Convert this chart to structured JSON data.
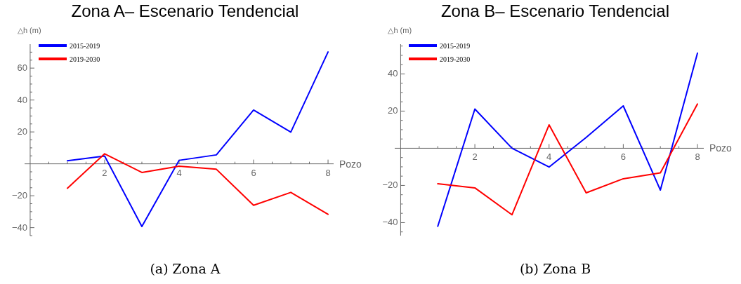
{
  "chart_data": [
    {
      "type": "line",
      "title": "Zona A– Escenario Tendencial",
      "xlabel": "Pozo",
      "ylabel": "△h (m)",
      "annotations": [
        "(a) Zona A"
      ],
      "legend": "top left",
      "grid": false,
      "x": [
        1,
        2,
        3,
        4,
        5,
        6,
        7,
        8
      ],
      "xlim": [
        -0.15,
        8.15
      ],
      "ylim": [
        -45,
        75
      ],
      "xticks": [
        {
          "value": 0.5,
          "label": null
        },
        {
          "value": 1,
          "label": null
        },
        {
          "value": 1.5,
          "label": null
        },
        2,
        {
          "value": 2.5,
          "label": null
        },
        {
          "value": 3,
          "label": null
        },
        {
          "value": 3.5,
          "label": null
        },
        4,
        {
          "value": 4.5,
          "label": null
        },
        {
          "value": 5,
          "label": null
        },
        {
          "value": 5.5,
          "label": null
        },
        6,
        {
          "value": 6.5,
          "label": null
        },
        {
          "value": 7,
          "label": null
        },
        {
          "value": 7.5,
          "label": null
        },
        8
      ],
      "yticks": [
        {
          "value": -45,
          "label": null
        },
        -40,
        {
          "value": -35,
          "label": null
        },
        {
          "value": -30,
          "label": null
        },
        {
          "value": -25,
          "label": null
        },
        -20,
        {
          "value": -15,
          "label": null
        },
        {
          "value": -10,
          "label": null
        },
        {
          "value": -5,
          "label": null
        },
        {
          "value": 5,
          "label": null
        },
        {
          "value": 10,
          "label": null
        },
        {
          "value": 15,
          "label": null
        },
        20,
        {
          "value": 25,
          "label": null
        },
        {
          "value": 30,
          "label": null
        },
        {
          "value": 35,
          "label": null
        },
        40,
        {
          "value": 45,
          "label": null
        },
        {
          "value": 50,
          "label": null
        },
        {
          "value": 55,
          "label": null
        },
        60,
        {
          "value": 65,
          "label": null
        },
        {
          "value": 70,
          "label": null
        }
      ],
      "series": [
        {
          "name": "2015-2019",
          "color": "#0000ff",
          "values": [
            1.9,
            4.9,
            -39.3,
            2.2,
            5.6,
            33.7,
            19.9,
            70.1
          ]
        },
        {
          "name": "2019-2030",
          "color": "#ff0000",
          "values": [
            -15.3,
            6.3,
            -5.4,
            -1.5,
            -3.4,
            -26,
            -17.9,
            -31.6
          ]
        }
      ]
    },
    {
      "type": "line",
      "title": "Zona B– Escenario Tendencial",
      "xlabel": "Pozo",
      "ylabel": "△h (m)",
      "annotations": [
        "(b) Zona B"
      ],
      "legend": "top left",
      "grid": false,
      "x": [
        1,
        2,
        3,
        4,
        5,
        6,
        7,
        8
      ],
      "xlim": [
        -0.16,
        8.17
      ],
      "ylim": [
        -47,
        56
      ],
      "xticks": [
        {
          "value": 0.5,
          "label": null
        },
        {
          "value": 1,
          "label": null
        },
        {
          "value": 1.5,
          "label": null
        },
        2,
        {
          "value": 2.5,
          "label": null
        },
        {
          "value": 3,
          "label": null
        },
        {
          "value": 3.5,
          "label": null
        },
        4,
        {
          "value": 4.5,
          "label": null
        },
        {
          "value": 5,
          "label": null
        },
        {
          "value": 5.5,
          "label": null
        },
        6,
        {
          "value": 6.5,
          "label": null
        },
        {
          "value": 7,
          "label": null
        },
        {
          "value": 7.5,
          "label": null
        },
        8
      ],
      "yticks": [
        {
          "value": -45,
          "label": null
        },
        -40,
        {
          "value": -35,
          "label": null
        },
        {
          "value": -30,
          "label": null
        },
        {
          "value": -25,
          "label": null
        },
        -20,
        {
          "value": -15,
          "label": null
        },
        {
          "value": -10,
          "label": null
        },
        {
          "value": -5,
          "label": null
        },
        {
          "value": 5,
          "label": null
        },
        {
          "value": 10,
          "label": null
        },
        {
          "value": 15,
          "label": null
        },
        20,
        {
          "value": 25,
          "label": null
        },
        {
          "value": 30,
          "label": null
        },
        {
          "value": 35,
          "label": null
        },
        40,
        {
          "value": 45,
          "label": null
        },
        {
          "value": 50,
          "label": null
        },
        {
          "value": 55,
          "label": null
        }
      ],
      "series": [
        {
          "name": "2015-2019",
          "color": "#0000ff",
          "values": [
            -42,
            21.1,
            0,
            -10.1,
            5.8,
            22.8,
            -22.5,
            51.2
          ]
        },
        {
          "name": "2019-2030",
          "color": "#ff0000",
          "values": [
            -19.1,
            -21.3,
            -35.8,
            12.6,
            -24,
            -16.4,
            -13.2,
            23.8
          ]
        }
      ]
    }
  ]
}
